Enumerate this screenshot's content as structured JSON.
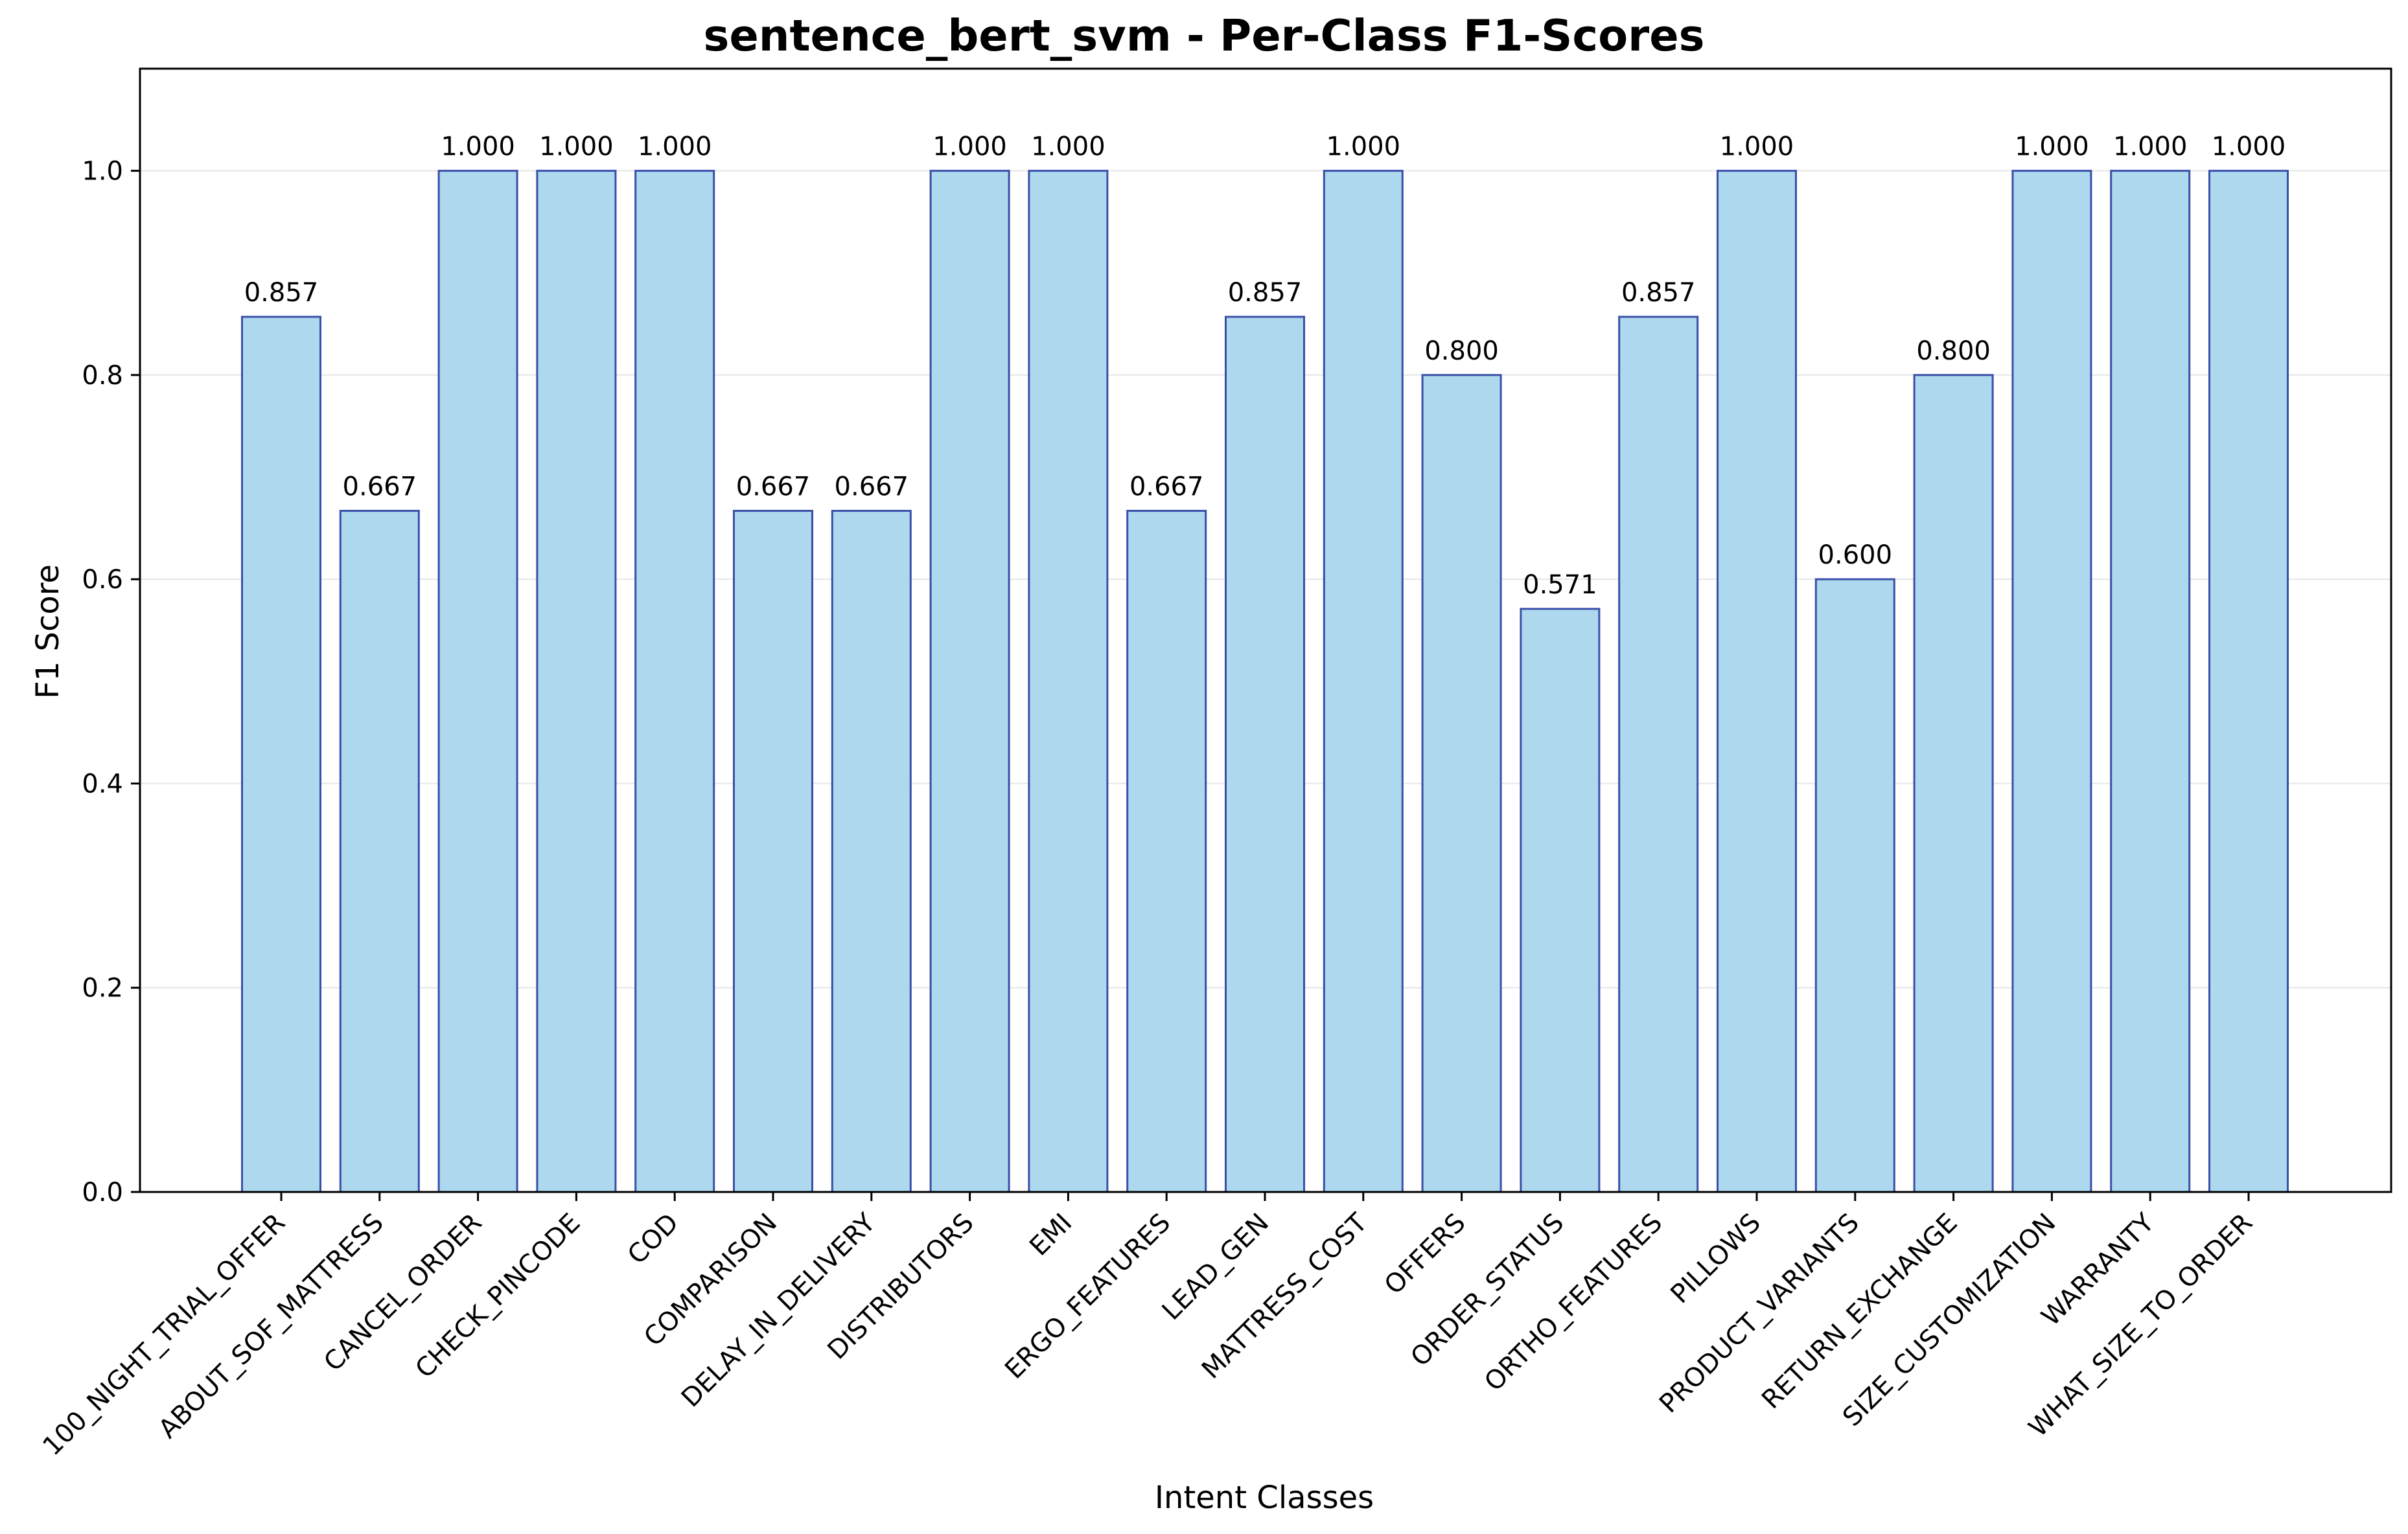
{
  "chart_data": {
    "type": "bar",
    "title": "sentence_bert_svm - Per-Class F1-Scores",
    "xlabel": "Intent Classes",
    "ylabel": "F1 Score",
    "ylim": [
      0,
      1.1
    ],
    "yticks": [
      "0.0",
      "0.2",
      "0.4",
      "0.6",
      "0.8",
      "1.0"
    ],
    "grid": "horizontal",
    "categories": [
      "100_NIGHT_TRIAL_OFFER",
      "ABOUT_SOF_MATTRESS",
      "CANCEL_ORDER",
      "CHECK_PINCODE",
      "COD",
      "COMPARISON",
      "DELAY_IN_DELIVERY",
      "DISTRIBUTORS",
      "EMI",
      "ERGO_FEATURES",
      "LEAD_GEN",
      "MATTRESS_COST",
      "OFFERS",
      "ORDER_STATUS",
      "ORTHO_FEATURES",
      "PILLOWS",
      "PRODUCT_VARIANTS",
      "RETURN_EXCHANGE",
      "SIZE_CUSTOMIZATION",
      "WARRANTY",
      "WHAT_SIZE_TO_ORDER"
    ],
    "values": [
      0.857,
      0.667,
      1.0,
      1.0,
      1.0,
      0.667,
      0.667,
      1.0,
      1.0,
      0.667,
      0.857,
      1.0,
      0.8,
      0.571,
      0.857,
      1.0,
      0.6,
      0.8,
      1.0,
      1.0,
      1.0
    ],
    "data_labels": [
      "0.857",
      "0.667",
      "1.000",
      "1.000",
      "1.000",
      "0.667",
      "0.667",
      "1.000",
      "1.000",
      "0.667",
      "0.857",
      "1.000",
      "0.800",
      "0.571",
      "0.857",
      "1.000",
      "0.600",
      "0.800",
      "1.000",
      "1.000",
      "1.000"
    ],
    "colors": {
      "bar_fill": "#add8ee",
      "bar_edge": "#3a4fa8",
      "grid": "#e6e6e6",
      "axis": "#000000"
    }
  }
}
